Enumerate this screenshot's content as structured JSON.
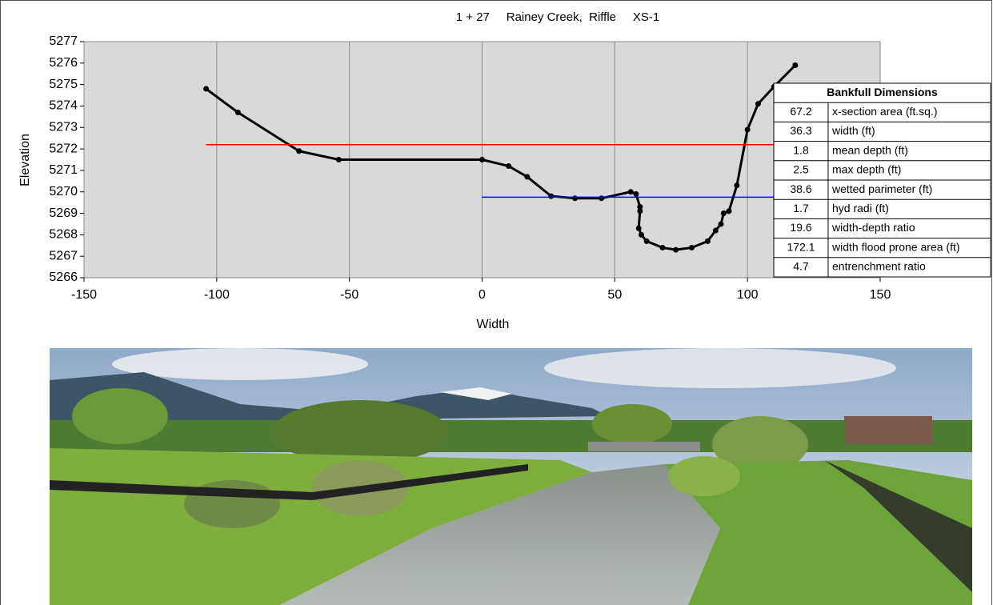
{
  "chart_data": {
    "type": "line",
    "title": "1 + 27     Rainey Creek,  Riffle     XS-1",
    "x_label": "Width",
    "y_label": "Elevation",
    "xlim": [
      -150,
      150
    ],
    "xticks": [
      -150,
      -100,
      -50,
      0,
      50,
      100,
      150
    ],
    "ylim": [
      5266,
      5277
    ],
    "yticks": [
      5266,
      5267,
      5268,
      5269,
      5270,
      5271,
      5272,
      5273,
      5274,
      5275,
      5276,
      5277
    ],
    "grid": "x",
    "background": "#d9d9d9",
    "series": [
      {
        "color": "#000000",
        "markers": true,
        "x": [
          -104,
          -92,
          -69,
          -54,
          0,
          10,
          17,
          26,
          35,
          45,
          56,
          58,
          59.5,
          59.5,
          59,
          60,
          62,
          68,
          73,
          79,
          85,
          88,
          90,
          91,
          93,
          96,
          100,
          104,
          110,
          118
        ],
        "values": [
          5274.8,
          5273.7,
          5271.9,
          5271.5,
          5271.5,
          5271.2,
          5270.7,
          5269.8,
          5269.7,
          5269.7,
          5270.0,
          5269.9,
          5269.3,
          5269.1,
          5268.3,
          5268.0,
          5267.7,
          5267.4,
          5267.3,
          5267.4,
          5267.7,
          5268.2,
          5268.5,
          5269.0,
          5269.1,
          5270.3,
          5272.9,
          5274.1,
          5274.9,
          5275.9
        ]
      },
      {
        "color": "#ff0000",
        "markers": false,
        "x": [
          -104,
          110
        ],
        "values": [
          5272.2,
          5272.2
        ]
      },
      {
        "color": "#0000ff",
        "markers": false,
        "x": [
          0,
          110
        ],
        "values": [
          5269.75,
          5269.75
        ]
      }
    ]
  },
  "table": {
    "title": "Bankfull Dimensions",
    "rows": [
      [
        "67.2",
        "x-section area (ft.sq.)"
      ],
      [
        "36.3",
        "width (ft)"
      ],
      [
        "1.8",
        "mean depth (ft)"
      ],
      [
        "2.5",
        "max depth (ft)"
      ],
      [
        "38.6",
        "wetted parimeter (ft)"
      ],
      [
        "1.7",
        "hyd radi (ft)"
      ],
      [
        "19.6",
        "width-depth ratio"
      ],
      [
        "172.1",
        "width flood prone area (ft)"
      ],
      [
        "4.7",
        "entrenchment ratio"
      ]
    ]
  }
}
